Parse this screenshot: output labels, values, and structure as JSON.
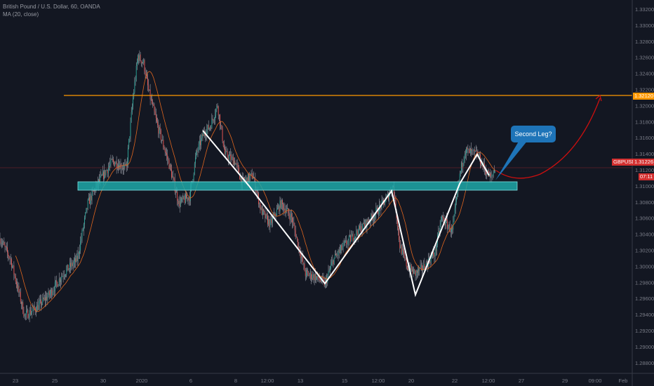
{
  "header": {
    "symbol_title": "British Pound / U.S. Dollar, 60, OANDA",
    "indicator": "MA (20, close)"
  },
  "colors": {
    "background": "#131722",
    "up": "#26a69a",
    "down": "#ef5350",
    "wick": "#b2b5be",
    "ma": "#e0661f",
    "resistance": "#ff9800",
    "support_zone": "#1fa8a8",
    "zigzag": "#ffffff",
    "projection": "#cc0f0f",
    "callout": "#1e74b8",
    "last_price": "#d32f2f"
  },
  "annotations": {
    "callout_text": "Second Leg?",
    "resistance_label": "1.32120",
    "last_price_symbol": "GBPUSD",
    "last_price": "1.31226",
    "countdown": "07:11"
  },
  "chart_data": {
    "type": "candlestick",
    "symbol": "GBPUSD",
    "interval": "60",
    "title": "British Pound / U.S. Dollar, 60, OANDA",
    "ylim": [
      1.287,
      1.333
    ],
    "y_ticks": [
      "1.33200",
      "1.33000",
      "1.32800",
      "1.32600",
      "1.32400",
      "1.32200",
      "1.32000",
      "1.31800",
      "1.31600",
      "1.31400",
      "1.31200",
      "1.31000",
      "1.30800",
      "1.30600",
      "1.30400",
      "1.30200",
      "1.30000",
      "1.29800",
      "1.29600",
      "1.29400",
      "1.29200",
      "1.29000",
      "1.28800"
    ],
    "x_ticks": [
      "23",
      "25",
      "30",
      "2020",
      "6",
      "8",
      "12:00",
      "13",
      "15",
      "12:00",
      "20",
      "22",
      "12:00",
      "27",
      "29",
      "09:00",
      "Feb"
    ],
    "grid": false,
    "price_path_bar_index": [
      0,
      13,
      30,
      43,
      60,
      77,
      94,
      107,
      120,
      137,
      154,
      162,
      168,
      175,
      181,
      192,
      205,
      218,
      231,
      239,
      248,
      256,
      265,
      274,
      286,
      295,
      308,
      318,
      329,
      342,
      355,
      372,
      385,
      396,
      406,
      419,
      436,
      453,
      470,
      479,
      487,
      496,
      506,
      517,
      530,
      538,
      551,
      560,
      566,
      581,
      590,
      598,
      603
    ],
    "price_path_close": [
      1.30345,
      1.30083,
      1.29385,
      1.29472,
      1.29647,
      1.29909,
      1.30083,
      1.30782,
      1.31044,
      1.31306,
      1.31218,
      1.32091,
      1.32615,
      1.32528,
      1.32179,
      1.31742,
      1.31306,
      1.30782,
      1.30869,
      1.31393,
      1.31655,
      1.31742,
      1.32004,
      1.31393,
      1.31306,
      1.31044,
      1.31131,
      1.30694,
      1.3052,
      1.30782,
      1.30607,
      1.29909,
      1.29865,
      1.29778,
      1.30083,
      1.30258,
      1.30433,
      1.30607,
      1.30825,
      1.31,
      1.30258,
      1.29996,
      1.29909,
      1.29996,
      1.30171,
      1.30607,
      1.30433,
      1.31131,
      1.31436,
      1.31393,
      1.31218,
      1.31087,
      1.31226
    ],
    "moving_average": {
      "period": 20,
      "source": "close"
    },
    "resistance_level": 1.3212,
    "support_zone": [
      1.30947,
      1.31052
    ],
    "last_price": 1.31226
  }
}
